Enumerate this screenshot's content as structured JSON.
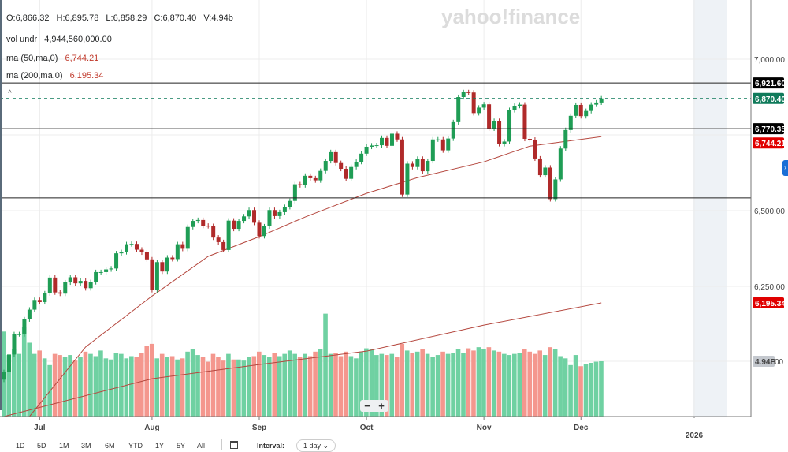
{
  "legend": {
    "ohlc": {
      "o": "O:6,866.32",
      "h": "H:6,895.78",
      "l": "L:6,858.29",
      "c": "C:6,870.40",
      "v": "V:4.94b"
    },
    "vol": {
      "label": "vol undr",
      "value": "4,944,560,000.00"
    },
    "ma50": {
      "label": "ma (50,ma,0)",
      "value": "6,744.21"
    },
    "ma200": {
      "label": "ma (200,ma,0)",
      "value": "6,195.34"
    }
  },
  "watermark": "yahoo!finance",
  "collapse_icon": "chevron-up-icon",
  "zoom": {
    "minus": "−",
    "plus": "+"
  },
  "ranges": [
    "1D",
    "5D",
    "1M",
    "3M",
    "6M",
    "YTD",
    "1Y",
    "5Y",
    "All"
  ],
  "interval": {
    "label": "Interval:",
    "value": "1 day ⌄"
  },
  "colors": {
    "up": "#1f9d55",
    "down": "#b02a2a",
    "vol_up": "#6fd1a2",
    "vol_down": "#f4978e",
    "ma": "#b5483f",
    "accent": "#1a6fd6"
  },
  "chart_data": {
    "type": "candlestick",
    "x_ticks": [
      "Jul",
      "Aug",
      "Sep",
      "Oct",
      "Nov",
      "Dec",
      "2026"
    ],
    "y_ticks": [
      "7,000.00",
      "6,750.00",
      "6,500.00",
      "6,250.00"
    ],
    "y_tick_values": [
      7000,
      6750,
      6500,
      6250
    ],
    "ylim": [
      5820,
      7080
    ],
    "grid": true,
    "dates": [
      "Jun 20",
      "Jun 23",
      "Jun 24",
      "Jun 25",
      "Jun 26",
      "Jun 27",
      "Jun 30",
      "Jul 1",
      "Jul 2",
      "Jul 3",
      "Jul 7",
      "Jul 8",
      "Jul 9",
      "Jul 10",
      "Jul 11",
      "Jul 14",
      "Jul 15",
      "Jul 16",
      "Jul 17",
      "Jul 18",
      "Jul 21",
      "Jul 22",
      "Jul 23",
      "Jul 24",
      "Jul 25",
      "Jul 28",
      "Jul 29",
      "Jul 30",
      "Jul 31",
      "Aug 1",
      "Aug 4",
      "Aug 5",
      "Aug 6",
      "Aug 7",
      "Aug 8",
      "Aug 11",
      "Aug 12",
      "Aug 13",
      "Aug 14",
      "Aug 15",
      "Aug 18",
      "Aug 19",
      "Aug 20",
      "Aug 21",
      "Aug 22",
      "Aug 25",
      "Aug 26",
      "Aug 27",
      "Aug 28",
      "Aug 29",
      "Sep 2",
      "Sep 3",
      "Sep 4",
      "Sep 5",
      "Sep 8",
      "Sep 9",
      "Sep 10",
      "Sep 11",
      "Sep 12",
      "Sep 15",
      "Sep 16",
      "Sep 17",
      "Sep 18",
      "Sep 19",
      "Sep 22",
      "Sep 23",
      "Sep 24",
      "Sep 25",
      "Sep 26",
      "Sep 29",
      "Sep 30",
      "Oct 1",
      "Oct 2",
      "Oct 3",
      "Oct 6",
      "Oct 7",
      "Oct 8",
      "Oct 9",
      "Oct 10",
      "Oct 13",
      "Oct 14",
      "Oct 15",
      "Oct 16",
      "Oct 17",
      "Oct 20",
      "Oct 21",
      "Oct 22",
      "Oct 23",
      "Oct 24",
      "Oct 27",
      "Oct 28",
      "Oct 29",
      "Oct 30",
      "Oct 31",
      "Nov 3",
      "Nov 4",
      "Nov 5",
      "Nov 6",
      "Nov 7",
      "Nov 10",
      "Nov 11",
      "Nov 12",
      "Nov 13",
      "Nov 14",
      "Nov 17",
      "Nov 18",
      "Nov 19",
      "Nov 20",
      "Nov 21",
      "Nov 24",
      "Nov 25",
      "Nov 26",
      "Nov 28",
      "Dec 1",
      "Dec 2",
      "Dec 3",
      "Dec 4",
      "Dec 5"
    ],
    "close": [
      5967,
      6025,
      6092,
      6092,
      6141,
      6173,
      6205,
      6198,
      6227,
      6279,
      6230,
      6226,
      6263,
      6280,
      6260,
      6268,
      6244,
      6264,
      6297,
      6297,
      6306,
      6309,
      6359,
      6363,
      6389,
      6390,
      6371,
      6362,
      6339,
      6238,
      6330,
      6299,
      6345,
      6340,
      6389,
      6374,
      6446,
      6466,
      6469,
      6450,
      6449,
      6411,
      6396,
      6370,
      6467,
      6440,
      6466,
      6481,
      6502,
      6460,
      6416,
      6448,
      6502,
      6482,
      6495,
      6512,
      6532,
      6587,
      6584,
      6615,
      6607,
      6600,
      6631,
      6664,
      6693,
      6657,
      6638,
      6605,
      6644,
      6661,
      6688,
      6711,
      6715,
      6716,
      6740,
      6714,
      6754,
      6735,
      6553,
      6655,
      6644,
      6671,
      6630,
      6664,
      6735,
      6735,
      6699,
      6738,
      6792,
      6875,
      6891,
      6890,
      6822,
      6840,
      6851,
      6771,
      6796,
      6720,
      6728,
      6832,
      6846,
      6850,
      6737,
      6734,
      6672,
      6617,
      6642,
      6538,
      6603,
      6705,
      6766,
      6813,
      6849,
      6812,
      6829,
      6850,
      6857,
      6870.4
    ],
    "volume_b": [
      7.6,
      5.5,
      6.0,
      5.6,
      8.0,
      6.6,
      5.6,
      5.9,
      5.2,
      4.6,
      5.6,
      5.5,
      5.3,
      5.5,
      5.0,
      5.3,
      5.8,
      5.6,
      5.4,
      5.9,
      5.2,
      5.1,
      5.7,
      5.6,
      5.2,
      5.4,
      5.3,
      5.7,
      6.3,
      6.5,
      5.2,
      5.6,
      5.3,
      5.4,
      5.1,
      5.2,
      5.8,
      6.0,
      5.5,
      5.3,
      4.9,
      5.6,
      5.3,
      5.0,
      5.6,
      5.1,
      5.1,
      5.0,
      5.3,
      5.4,
      5.8,
      5.5,
      5.3,
      5.7,
      5.4,
      5.6,
      5.9,
      5.6,
      5.3,
      5.6,
      5.4,
      5.8,
      6.0,
      9.2,
      5.6,
      5.7,
      5.4,
      5.8,
      5.4,
      5.2,
      5.8,
      6.1,
      6.0,
      5.5,
      5.6,
      5.5,
      5.6,
      5.3,
      6.5,
      5.9,
      5.7,
      5.8,
      6.0,
      5.6,
      5.3,
      5.5,
      5.8,
      5.6,
      5.7,
      6.0,
      5.7,
      6.1,
      5.9,
      6.2,
      6.0,
      6.2,
      5.9,
      5.8,
      5.6,
      5.5,
      5.6,
      5.7,
      6.0,
      5.8,
      5.6,
      5.9,
      5.5,
      6.2,
      6.0,
      5.4,
      5.2,
      4.6,
      5.5,
      4.5,
      4.7,
      4.8,
      4.9,
      4.94
    ],
    "ma50": [
      [
        "Jun 27",
        5820
      ],
      [
        "Jul 15",
        6050
      ],
      [
        "Aug 1",
        6218
      ],
      [
        "Aug 18",
        6349
      ],
      [
        "Sep 2",
        6414
      ],
      [
        "Sep 15",
        6479
      ],
      [
        "Oct 1",
        6557
      ],
      [
        "Oct 15",
        6609
      ],
      [
        "Nov 3",
        6661
      ],
      [
        "Nov 14",
        6713
      ],
      [
        "Dec 5",
        6744.21
      ]
    ],
    "ma200": [
      [
        "Jun 20",
        5820
      ],
      [
        "Aug 1",
        5945
      ],
      [
        "Sep 2",
        5992
      ],
      [
        "Oct 1",
        6036
      ],
      [
        "Nov 3",
        6122
      ],
      [
        "Dec 5",
        6195.34
      ]
    ],
    "horizontal_lines": [
      6921.6,
      6770.35,
      6542
    ],
    "last_price_line": 6870.4,
    "price_labels": [
      {
        "text": "6,921.60",
        "value": 6921.6,
        "color": "#000000"
      },
      {
        "text": "6,870.40",
        "value": 6870.4,
        "color": "#0f7a5a"
      },
      {
        "text": "6,744.21",
        "value": 6744.21,
        "color": "#e00000"
      },
      {
        "text": "6,770.35",
        "value": 6770.35,
        "color": "#000000"
      },
      {
        "text": "6,195.34",
        "value": 6195.34,
        "color": "#e00000"
      },
      {
        "text": "4.94B",
        "value": 4.94,
        "color": "#c4c8ce",
        "axis": "volume"
      }
    ]
  }
}
